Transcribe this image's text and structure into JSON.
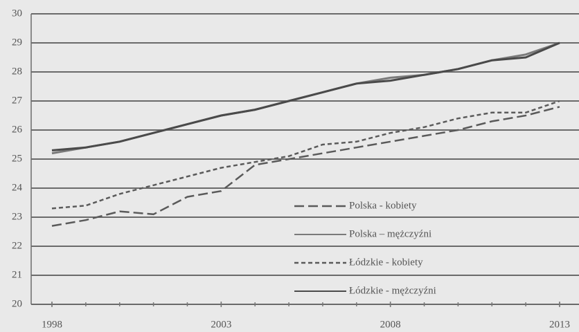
{
  "chart_data": {
    "type": "line",
    "x": [
      1998,
      1999,
      2000,
      2001,
      2002,
      2003,
      2004,
      2005,
      2006,
      2007,
      2008,
      2009,
      2010,
      2011,
      2012,
      2013
    ],
    "series": [
      {
        "name": "Polska - kobiety",
        "color": "#5a5a5a",
        "dash": "long",
        "values": [
          22.7,
          22.9,
          23.2,
          23.1,
          23.7,
          23.9,
          24.8,
          25.0,
          25.2,
          25.4,
          25.6,
          25.8,
          26.0,
          26.3,
          26.5,
          26.8
        ]
      },
      {
        "name": "Polska – mężczyźni",
        "color": "#7a7a7a",
        "dash": "solid",
        "values": [
          25.2,
          25.4,
          25.6,
          25.9,
          26.2,
          26.5,
          26.7,
          27.0,
          27.3,
          27.6,
          27.8,
          27.9,
          28.1,
          28.4,
          28.6,
          29.0
        ]
      },
      {
        "name": "Łódzkie - kobiety",
        "color": "#5a5a5a",
        "dash": "short",
        "values": [
          23.3,
          23.4,
          23.8,
          24.1,
          24.4,
          24.7,
          24.9,
          25.1,
          25.5,
          25.6,
          25.9,
          26.1,
          26.4,
          26.6,
          26.6,
          27.0
        ]
      },
      {
        "name": "Łódzkie - mężczyźni",
        "color": "#4a4a4a",
        "dash": "solid",
        "values": [
          25.3,
          25.4,
          25.6,
          25.9,
          26.2,
          26.5,
          26.7,
          27.0,
          27.3,
          27.6,
          27.7,
          27.9,
          28.1,
          28.4,
          28.5,
          29.0
        ]
      }
    ],
    "xlim": [
      1998,
      2013
    ],
    "xticks": [
      1998,
      2003,
      2008,
      2013
    ],
    "ylim": [
      20,
      30
    ],
    "yticks": [
      20,
      21,
      22,
      23,
      24,
      25,
      26,
      27,
      28,
      29,
      30
    ],
    "grid": true,
    "legend": "lower right"
  }
}
